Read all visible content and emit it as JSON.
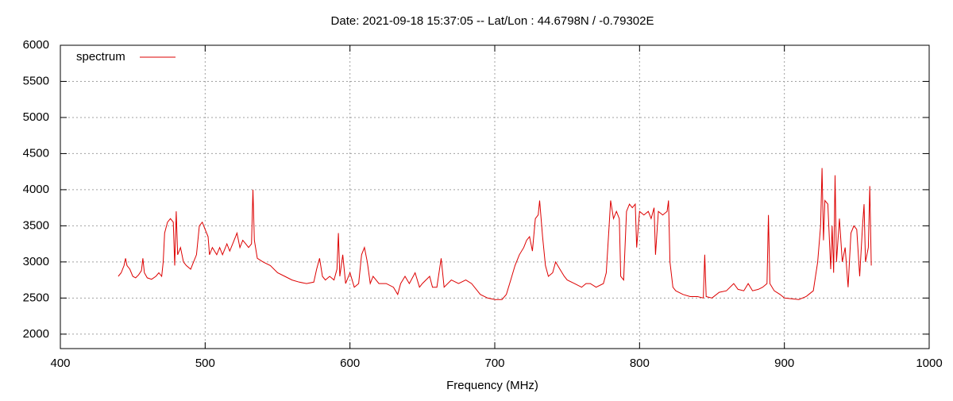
{
  "chart_data": {
    "type": "line",
    "title": "Date: 2021-09-18 15:37:05  --  Lat/Lon : 44.6798N / -0.79302E",
    "xlabel": "Frequency (MHz)",
    "xlim": [
      400,
      1000
    ],
    "xticks": [
      400,
      500,
      600,
      700,
      800,
      900,
      1000
    ],
    "ylim": [
      1800,
      6000
    ],
    "yticks": [
      2000,
      2500,
      3000,
      3500,
      4000,
      4500,
      5000,
      5500,
      6000
    ],
    "grid": true,
    "legend": "top left",
    "series": [
      {
        "name": "spectrum",
        "color": "#dd0000",
        "x": [
          440,
          442,
          444,
          445,
          446,
          448,
          450,
          452,
          454,
          456,
          457,
          458,
          460,
          463,
          466,
          468,
          470,
          471,
          472,
          474,
          476,
          478,
          479,
          480,
          481,
          483,
          485,
          487,
          490,
          492,
          494,
          496,
          498,
          500,
          502,
          503,
          505,
          508,
          510,
          512,
          515,
          517,
          520,
          522,
          524,
          526,
          528,
          530,
          532,
          533,
          534,
          536,
          540,
          545,
          550,
          555,
          560,
          565,
          570,
          575,
          577,
          579,
          581,
          583,
          586,
          589,
          591,
          592,
          593,
          595,
          597,
          600,
          603,
          606,
          608,
          610,
          612,
          614,
          616,
          618,
          620,
          625,
          630,
          633,
          635,
          638,
          641,
          645,
          648,
          650,
          655,
          657,
          660,
          663,
          665,
          670,
          675,
          680,
          684,
          688,
          690,
          695,
          700,
          705,
          708,
          711,
          714,
          717,
          720,
          722,
          724,
          726,
          728,
          730,
          731,
          733,
          735,
          737,
          740,
          742,
          745,
          748,
          750,
          755,
          760,
          763,
          766,
          770,
          775,
          777,
          779,
          780,
          782,
          784,
          786,
          787,
          789,
          791,
          793,
          795,
          797,
          798,
          800,
          803,
          806,
          808,
          810,
          811,
          813,
          816,
          819,
          820,
          821,
          823,
          825,
          830,
          835,
          840,
          844,
          845,
          846,
          850,
          855,
          860,
          865,
          868,
          872,
          875,
          878,
          882,
          885,
          888,
          889,
          890,
          893,
          897,
          900,
          905,
          910,
          915,
          920,
          923,
          925,
          926,
          927,
          928,
          930,
          932,
          933,
          934,
          935,
          936,
          938,
          940,
          942,
          944,
          946,
          948,
          950,
          952,
          954,
          955,
          956,
          958,
          959,
          960
        ],
        "values": [
          2800,
          2850,
          2950,
          3050,
          2950,
          2900,
          2800,
          2780,
          2820,
          2880,
          3050,
          2850,
          2780,
          2760,
          2800,
          2850,
          2800,
          3000,
          3400,
          3550,
          3600,
          3550,
          2950,
          3700,
          3100,
          3200,
          3000,
          2950,
          2900,
          3000,
          3100,
          3500,
          3550,
          3450,
          3350,
          3100,
          3200,
          3100,
          3200,
          3100,
          3250,
          3150,
          3300,
          3400,
          3200,
          3300,
          3250,
          3200,
          3250,
          4000,
          3300,
          3050,
          3000,
          2950,
          2850,
          2800,
          2750,
          2720,
          2700,
          2720,
          2900,
          3050,
          2800,
          2750,
          2800,
          2750,
          2900,
          3400,
          2800,
          3100,
          2700,
          2850,
          2650,
          2700,
          3100,
          3200,
          3000,
          2700,
          2800,
          2750,
          2700,
          2700,
          2650,
          2550,
          2700,
          2800,
          2700,
          2850,
          2650,
          2700,
          2800,
          2650,
          2650,
          3050,
          2650,
          2750,
          2700,
          2750,
          2700,
          2600,
          2550,
          2500,
          2480,
          2480,
          2550,
          2750,
          2950,
          3100,
          3200,
          3300,
          3350,
          3150,
          3600,
          3650,
          3850,
          3350,
          2950,
          2800,
          2850,
          3000,
          2900,
          2800,
          2750,
          2700,
          2650,
          2700,
          2700,
          2650,
          2700,
          2850,
          3500,
          3850,
          3600,
          3700,
          3600,
          2800,
          2750,
          3700,
          3800,
          3750,
          3800,
          3200,
          3700,
          3650,
          3700,
          3600,
          3750,
          3100,
          3700,
          3650,
          3700,
          3850,
          3000,
          2650,
          2600,
          2550,
          2520,
          2520,
          2500,
          3100,
          2520,
          2500,
          2580,
          2600,
          2700,
          2620,
          2600,
          2700,
          2600,
          2620,
          2650,
          2700,
          3650,
          2700,
          2600,
          2550,
          2500,
          2490,
          2480,
          2520,
          2600,
          3000,
          3500,
          4300,
          3300,
          3850,
          3800,
          2900,
          3500,
          2850,
          4200,
          3000,
          3600,
          3000,
          3200,
          2650,
          3400,
          3500,
          3450,
          2800,
          3500,
          3800,
          3000,
          3200,
          4050,
          2950
        ]
      }
    ]
  }
}
